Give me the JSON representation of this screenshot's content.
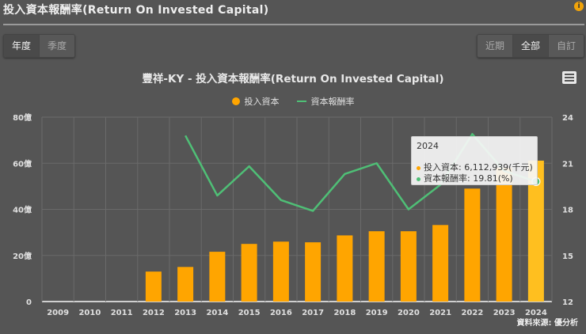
{
  "header": {
    "title": "投入資本報酬率(Return On Invested Capital)",
    "info_icon": "info-icon"
  },
  "period_tabs": [
    {
      "label": "年度",
      "active": true
    },
    {
      "label": "季度",
      "active": false
    }
  ],
  "range_tabs": [
    {
      "label": "近期",
      "active": false
    },
    {
      "label": "全部",
      "active": true
    },
    {
      "label": "自訂",
      "active": false
    }
  ],
  "chart_menu_icon": "hamburger-menu-icon",
  "tooltip": {
    "title": "2024",
    "rows": [
      {
        "label": "投入資本: 6,112,939(千元)",
        "color": "#ffa500"
      },
      {
        "label": "資本報酬率: 19.81(%)",
        "color": "#4fbf76"
      }
    ]
  },
  "source": "資料來源: 優分析",
  "colors": {
    "bar": "#ffa500",
    "bar_highlight": "#ffbf1f",
    "line": "#4fbf76",
    "background": "#555555",
    "grid": "#6a6a6a"
  },
  "chart_data": {
    "type": "bar+line",
    "title": "豐祥-KY - 投入資本報酬率(Return On Invested Capital)",
    "categories": [
      "2009",
      "2010",
      "2011",
      "2012",
      "2013",
      "2014",
      "2015",
      "2016",
      "2017",
      "2018",
      "2019",
      "2020",
      "2021",
      "2022",
      "2023",
      "2024"
    ],
    "series": [
      {
        "name": "投入資本",
        "type": "bar",
        "axis": "left",
        "unit": "億",
        "values": [
          null,
          null,
          null,
          13.0,
          15.0,
          21.6,
          25.0,
          26.0,
          25.7,
          28.7,
          30.5,
          30.5,
          33.2,
          49.0,
          58.0,
          61.13
        ]
      },
      {
        "name": "資本報酬率",
        "type": "line",
        "axis": "right",
        "unit": "%",
        "values": [
          null,
          null,
          null,
          null,
          22.8,
          18.9,
          20.8,
          18.6,
          17.9,
          20.3,
          21.0,
          18.0,
          19.6,
          22.9,
          20.5,
          19.81
        ]
      }
    ],
    "y_left": {
      "ticks": [
        "0",
        "20億",
        "40億",
        "60億",
        "80億"
      ],
      "range": [
        0,
        80
      ]
    },
    "y_right": {
      "ticks": [
        "12",
        "15",
        "18",
        "21",
        "24"
      ],
      "range": [
        12,
        24
      ]
    },
    "legend": [
      "投入資本",
      "資本報酬率"
    ],
    "legend_position": "top",
    "grid": true
  }
}
